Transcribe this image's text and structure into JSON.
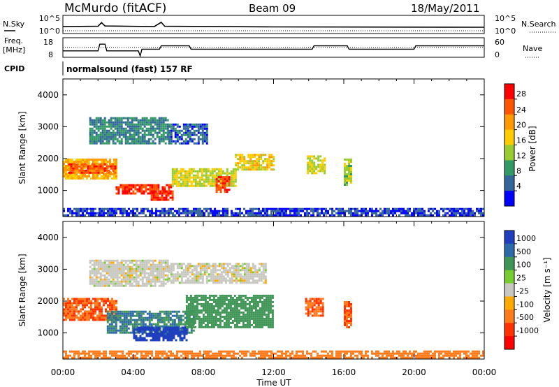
{
  "header": {
    "station": "McMurdo (fitACF)",
    "beam": "Beam 09",
    "date": "18/May/2011"
  },
  "top_panels": {
    "nsky_label": "N.Sky",
    "nsky_ticks": [
      "10^5",
      "10^0"
    ],
    "nsearch_label": "N.Search",
    "nsearch_ticks": [
      "10^5",
      "10^0"
    ],
    "freq_label_1": "Freq.",
    "freq_label_2": "[MHz]",
    "freq_ticks": [
      "18",
      "8"
    ],
    "nave_label": "Nave",
    "nave_ticks": [
      "60",
      "0"
    ],
    "cpid_label": "CPID",
    "cpid_text": "normalsound (fast) 157 RF"
  },
  "power_colorbar": {
    "label": "Power [dB]",
    "ticks": [
      "28",
      "24",
      "20",
      "16",
      "12",
      "8",
      "4"
    ],
    "colors": [
      "#ff0000",
      "#ff5500",
      "#ff9900",
      "#ffcc00",
      "#99cc33",
      "#339966",
      "#336699",
      "#0000ff"
    ]
  },
  "velocity_colorbar": {
    "label": "Velocity [m s⁻¹]",
    "ticks": [
      "1000",
      "500",
      "100",
      "25",
      "-25",
      "-100",
      "-500",
      "-1000"
    ],
    "colors": [
      "#1f3fbf",
      "#2e6aa8",
      "#3f9656",
      "#77cc33",
      "#c8c8c0",
      "#ffaa00",
      "#ff7a1a",
      "#ff3300",
      "#ff0000"
    ]
  },
  "chart_data": {
    "type": "heatmap",
    "xlabel": "Time UT",
    "ylabel": "Slant Range [km]",
    "x_ticks": [
      "00:00",
      "04:00",
      "08:00",
      "12:00",
      "16:00",
      "20:00",
      "00:00"
    ],
    "y_ticks": [
      "1000",
      "2000",
      "3000",
      "4000"
    ],
    "xlim_hours": [
      0,
      24
    ],
    "ylim_km": [
      180,
      4500
    ],
    "nsky_trace": [
      [
        0,
        1.8
      ],
      [
        2,
        1.9
      ],
      [
        2.2,
        3.1
      ],
      [
        2.4,
        2.0
      ],
      [
        5.2,
        1.8
      ],
      [
        5.6,
        3.2
      ],
      [
        5.8,
        1.9
      ],
      [
        12,
        1.7
      ],
      [
        24,
        1.6
      ]
    ],
    "freq_trace": [
      [
        0,
        11
      ],
      [
        2,
        11
      ],
      [
        2.1,
        15
      ],
      [
        2.4,
        15
      ],
      [
        2.5,
        11
      ],
      [
        4.3,
        11
      ],
      [
        4.4,
        8
      ],
      [
        4.5,
        12
      ],
      [
        5.5,
        12
      ],
      [
        5.6,
        14
      ],
      [
        7.2,
        14
      ],
      [
        7.3,
        12
      ],
      [
        12,
        12
      ],
      [
        14.2,
        12
      ],
      [
        14.3,
        14
      ],
      [
        16.2,
        14
      ],
      [
        16.3,
        12
      ],
      [
        20,
        12
      ],
      [
        20.1,
        14
      ],
      [
        24,
        14
      ]
    ],
    "power_echoes": [
      {
        "t_start": 0.0,
        "t_end": 3.1,
        "range_lo": 1400,
        "range_hi": 2000,
        "db": 20
      },
      {
        "t_start": 0.3,
        "t_end": 3.0,
        "range_lo": 1550,
        "range_hi": 1850,
        "db": 26
      },
      {
        "t_start": 3.0,
        "t_end": 6.2,
        "range_lo": 900,
        "range_hi": 1200,
        "db": 28
      },
      {
        "t_start": 5.0,
        "t_end": 6.2,
        "range_lo": 700,
        "range_hi": 1000,
        "db": 28
      },
      {
        "t_start": 1.5,
        "t_end": 6.0,
        "range_lo": 2500,
        "range_hi": 3300,
        "db": 8
      },
      {
        "t_start": 6.0,
        "t_end": 8.2,
        "range_lo": 2500,
        "range_hi": 3100,
        "db": 6
      },
      {
        "t_start": 6.2,
        "t_end": 9.8,
        "range_lo": 1150,
        "range_hi": 1700,
        "db": 16
      },
      {
        "t_start": 8.7,
        "t_end": 9.5,
        "range_lo": 950,
        "range_hi": 1450,
        "db": 28
      },
      {
        "t_start": 9.8,
        "t_end": 12.0,
        "range_lo": 1650,
        "range_hi": 2150,
        "db": 18
      },
      {
        "t_start": 13.9,
        "t_end": 14.9,
        "range_lo": 1550,
        "range_hi": 2100,
        "db": 16
      },
      {
        "t_start": 16.0,
        "t_end": 16.4,
        "range_lo": 1200,
        "range_hi": 2000,
        "db": 14
      },
      {
        "t_start": 0.0,
        "t_end": 24.0,
        "range_lo": 180,
        "range_hi": 450,
        "db": 4
      }
    ],
    "velocity_echoes": [
      {
        "t_start": 0.0,
        "t_end": 3.0,
        "range_lo": 1400,
        "range_hi": 2100,
        "v": -300
      },
      {
        "t_start": 1.5,
        "t_end": 6.0,
        "range_lo": 2500,
        "range_hi": 3300,
        "v": 0
      },
      {
        "t_start": 6.0,
        "t_end": 11.5,
        "range_lo": 2600,
        "range_hi": 3200,
        "v": 0
      },
      {
        "t_start": 2.5,
        "t_end": 7.5,
        "range_lo": 1000,
        "range_hi": 1700,
        "v": 300
      },
      {
        "t_start": 4.0,
        "t_end": 7.0,
        "range_lo": 800,
        "range_hi": 1200,
        "v": 1000
      },
      {
        "t_start": 7.0,
        "t_end": 12.0,
        "range_lo": 1200,
        "range_hi": 2200,
        "v": 200
      },
      {
        "t_start": 13.8,
        "t_end": 14.8,
        "range_lo": 1550,
        "range_hi": 2100,
        "v": -300
      },
      {
        "t_start": 16.0,
        "t_end": 16.4,
        "range_lo": 1200,
        "range_hi": 2000,
        "v": -300
      },
      {
        "t_start": 0.0,
        "t_end": 24.0,
        "range_lo": 180,
        "range_hi": 450,
        "v": -100
      }
    ]
  }
}
